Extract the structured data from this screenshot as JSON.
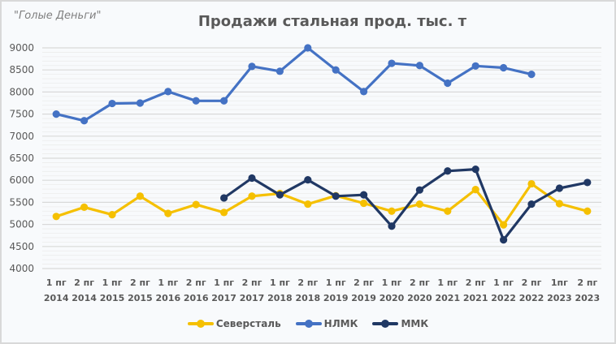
{
  "watermark": "\"Голые Деньги\"",
  "chart_data": {
    "type": "line",
    "title": "Продажи стальная прод. тыс. т",
    "xlabel": "",
    "ylabel": "",
    "ylim": [
      4000,
      9000
    ],
    "yticks": [
      9000,
      8500,
      8000,
      7500,
      7000,
      6500,
      6000,
      5500,
      5000,
      4500,
      4000
    ],
    "grid": true,
    "legend_position": "bottom",
    "categories": [
      [
        "1 пг",
        "2014"
      ],
      [
        "2 пг",
        "2014"
      ],
      [
        "1 пг",
        "2015"
      ],
      [
        "2 пг",
        "2015"
      ],
      [
        "1 пг",
        "2016"
      ],
      [
        "2 пг",
        "2016"
      ],
      [
        "1 пг",
        "2017"
      ],
      [
        "2 пг",
        "2017"
      ],
      [
        "1 пг",
        "2018"
      ],
      [
        "2 пг",
        "2018"
      ],
      [
        "1 пг",
        "2019"
      ],
      [
        "2 пг",
        "2019"
      ],
      [
        "1 пг",
        "2020"
      ],
      [
        "2 пг",
        "2020"
      ],
      [
        "1 пг",
        "2021"
      ],
      [
        "2 пг",
        "2021"
      ],
      [
        "1 пг",
        "2022"
      ],
      [
        "2 пг",
        "2022"
      ],
      [
        "1пг",
        "2023"
      ],
      [
        "2 пг",
        "2023"
      ]
    ],
    "series": [
      {
        "name": "Северсталь",
        "color": "#f5c000",
        "values": [
          5180,
          5390,
          5220,
          5640,
          5250,
          5450,
          5270,
          5640,
          5700,
          5460,
          5650,
          5480,
          5300,
          5460,
          5300,
          5790,
          4990,
          5920,
          5470,
          5300
        ]
      },
      {
        "name": "НЛМК",
        "color": "#4472c4",
        "values": [
          7500,
          7350,
          7740,
          7750,
          8010,
          7800,
          7800,
          8580,
          8470,
          9000,
          8500,
          8010,
          8650,
          8600,
          8200,
          8590,
          8550,
          8400,
          null,
          null
        ]
      },
      {
        "name": "ММК",
        "color": "#203864",
        "values": [
          null,
          null,
          null,
          null,
          null,
          null,
          5600,
          6050,
          5670,
          6010,
          5640,
          5670,
          4960,
          5780,
          6210,
          6250,
          4650,
          5460,
          5820,
          5950
        ]
      }
    ]
  }
}
